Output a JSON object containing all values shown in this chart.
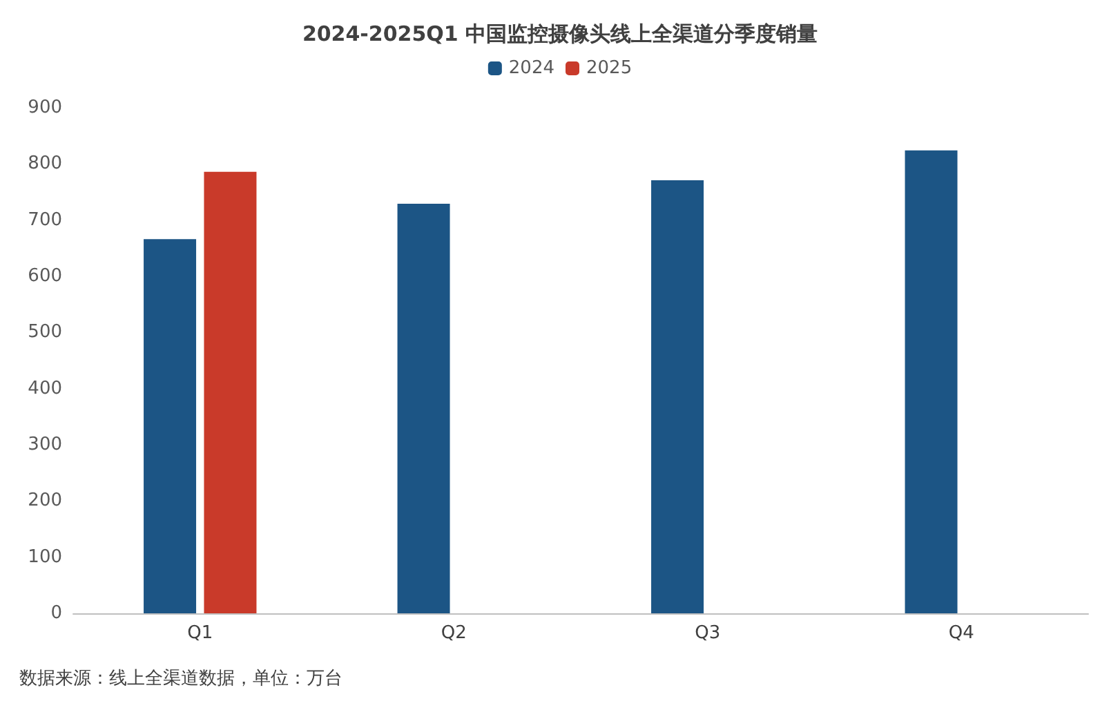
{
  "chart_data": {
    "type": "bar",
    "title": "2024-2025Q1 中国监控摄像头线上全渠道分季度销量",
    "categories": [
      "Q1",
      "Q2",
      "Q3",
      "Q4"
    ],
    "series": [
      {
        "name": "2024",
        "color": "#1c5585",
        "values": [
          666,
          729,
          771,
          824
        ]
      },
      {
        "name": "2025",
        "color": "#c93a2a",
        "values": [
          786,
          null,
          null,
          null
        ]
      }
    ],
    "ylim": [
      0,
      900
    ],
    "yticks": [
      0,
      100,
      200,
      300,
      400,
      500,
      600,
      700,
      800,
      900
    ],
    "grid": false,
    "legend": "top",
    "annotations": [
      "数据来源：线上全渠道数据，单位：万台"
    ]
  }
}
